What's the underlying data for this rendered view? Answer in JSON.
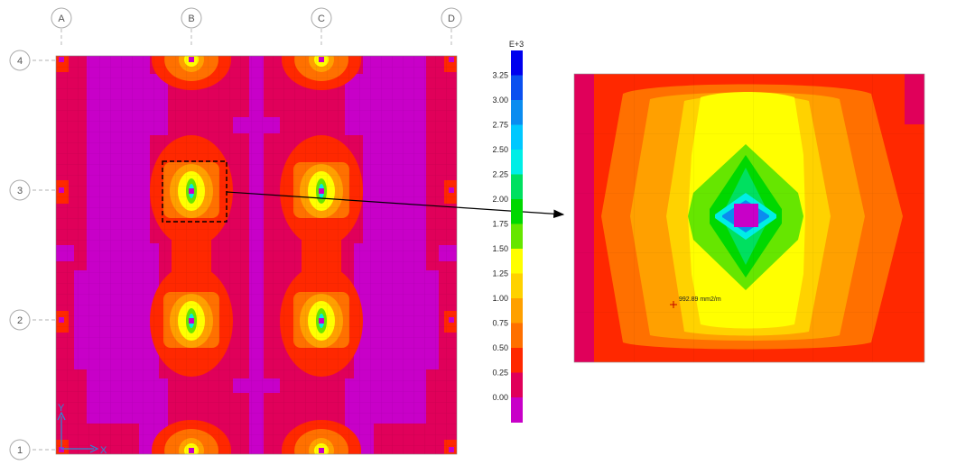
{
  "grid": {
    "columns": [
      "A",
      "B",
      "C",
      "D"
    ],
    "rows": [
      "4",
      "3",
      "2",
      "1"
    ]
  },
  "axes": {
    "x_label": "X",
    "y_label": "Y"
  },
  "legend": {
    "exponent": "E+3",
    "ticks": [
      "3.25",
      "3.00",
      "2.75",
      "2.50",
      "2.25",
      "2.00",
      "1.75",
      "1.50",
      "1.25",
      "1.00",
      "0.75",
      "0.50",
      "0.25",
      "0.00"
    ],
    "colors": [
      "#0000ee",
      "#0a50f0",
      "#0a8cf0",
      "#00c8ff",
      "#00eee6",
      "#00e060",
      "#00d800",
      "#66e600",
      "#ffff00",
      "#ffd200",
      "#ffa000",
      "#ff7000",
      "#ff2800",
      "#e0005a",
      "#c800c8"
    ]
  },
  "zoom": {
    "annotation": "992.89 mm2/m"
  },
  "colors": {
    "background": "#ffffff",
    "low": "#c800c8",
    "mid": "#ff2800",
    "high": "#0000ee",
    "grid_bubble": "#aaaaaa",
    "axis": "#2a8cd6"
  }
}
